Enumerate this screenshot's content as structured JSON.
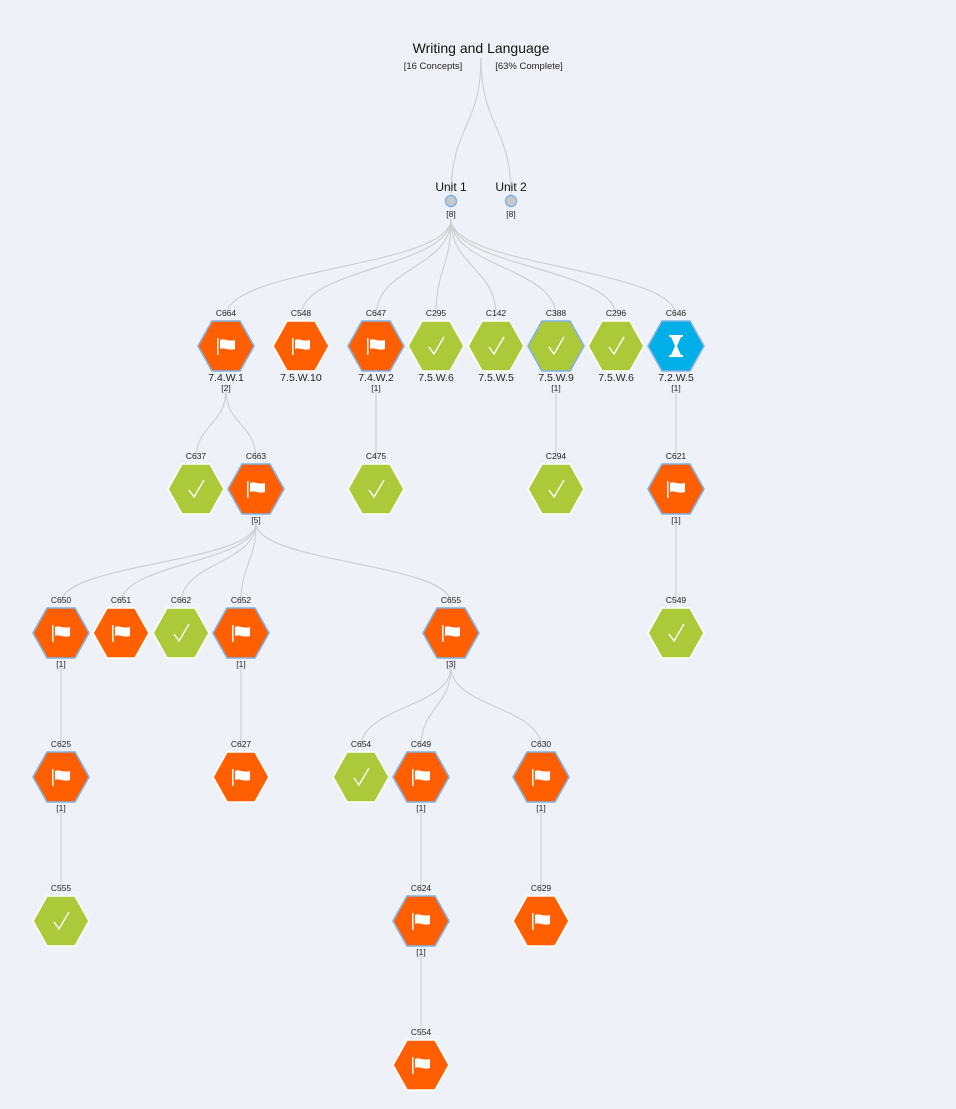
{
  "root": {
    "title": "Writing and Language",
    "concepts": "[16 Concepts]",
    "complete": "[63% Complete]"
  },
  "colors": {
    "flagged": "#ff5f00",
    "complete": "#acc93a",
    "in_progress": "#00aee8",
    "selected_border": "#7fb2e6",
    "edge": "#cfd0d3",
    "unit_fill": "#c9c9cb"
  },
  "units": [
    {
      "id": "u1",
      "label": "Unit 1",
      "count": "[8]"
    },
    {
      "id": "u2",
      "label": "Unit 2",
      "count": "[8]"
    }
  ],
  "nodes": [
    {
      "id": "C664",
      "parent": "u1",
      "status": "flagged",
      "icon": "flag-icon",
      "label": "7.4.W.1",
      "count": "[2]",
      "selected": true
    },
    {
      "id": "C548",
      "parent": "u1",
      "status": "flagged",
      "icon": "flag-icon",
      "label": "7.5.W.10",
      "count": "",
      "selected": false
    },
    {
      "id": "C647",
      "parent": "u1",
      "status": "flagged",
      "icon": "flag-icon",
      "label": "7.4.W.2",
      "count": "[1]",
      "selected": true
    },
    {
      "id": "C295",
      "parent": "u1",
      "status": "complete",
      "icon": "checkmark-icon",
      "label": "7.5.W.6",
      "count": "",
      "selected": false
    },
    {
      "id": "C142",
      "parent": "u1",
      "status": "complete",
      "icon": "checkmark-icon",
      "label": "7.5.W.5",
      "count": "",
      "selected": false
    },
    {
      "id": "C388",
      "parent": "u1",
      "status": "complete",
      "icon": "checkmark-icon",
      "label": "7.5.W.9",
      "count": "[1]",
      "selected": true
    },
    {
      "id": "C296",
      "parent": "u1",
      "status": "complete",
      "icon": "checkmark-icon",
      "label": "7.5.W.6",
      "count": "",
      "selected": false
    },
    {
      "id": "C646",
      "parent": "u1",
      "status": "in_progress",
      "icon": "hourglass-icon",
      "label": "7.2.W.5",
      "count": "[1]",
      "selected": true
    },
    {
      "id": "C637",
      "parent": "C664",
      "status": "complete",
      "icon": "checkmark-icon",
      "label": "",
      "count": "",
      "selected": false
    },
    {
      "id": "C663",
      "parent": "C664",
      "status": "flagged",
      "icon": "flag-icon",
      "label": "",
      "count": "[5]",
      "selected": true
    },
    {
      "id": "C475",
      "parent": "C647",
      "status": "complete",
      "icon": "checkmark-icon",
      "label": "",
      "count": "",
      "selected": false
    },
    {
      "id": "C294",
      "parent": "C388",
      "status": "complete",
      "icon": "checkmark-icon",
      "label": "",
      "count": "",
      "selected": false
    },
    {
      "id": "C621",
      "parent": "C646",
      "status": "flagged",
      "icon": "flag-icon",
      "label": "",
      "count": "[1]",
      "selected": true
    },
    {
      "id": "C650",
      "parent": "C663",
      "status": "flagged",
      "icon": "flag-icon",
      "label": "",
      "count": "[1]",
      "selected": true
    },
    {
      "id": "C651",
      "parent": "C663",
      "status": "flagged",
      "icon": "flag-icon",
      "label": "",
      "count": "",
      "selected": false
    },
    {
      "id": "C662",
      "parent": "C663",
      "status": "complete",
      "icon": "checkmark-icon",
      "label": "",
      "count": "",
      "selected": false
    },
    {
      "id": "C652",
      "parent": "C663",
      "status": "flagged",
      "icon": "flag-icon",
      "label": "",
      "count": "[1]",
      "selected": true
    },
    {
      "id": "C655",
      "parent": "C663",
      "status": "flagged",
      "icon": "flag-icon",
      "label": "",
      "count": "[3]",
      "selected": true
    },
    {
      "id": "C549",
      "parent": "C621",
      "status": "complete",
      "icon": "checkmark-icon",
      "label": "",
      "count": "",
      "selected": false
    },
    {
      "id": "C625",
      "parent": "C650",
      "status": "flagged",
      "icon": "flag-icon",
      "label": "",
      "count": "[1]",
      "selected": true
    },
    {
      "id": "C627",
      "parent": "C652",
      "status": "flagged",
      "icon": "flag-icon",
      "label": "",
      "count": "",
      "selected": false
    },
    {
      "id": "C654",
      "parent": "C655",
      "status": "complete",
      "icon": "checkmark-icon",
      "label": "",
      "count": "",
      "selected": false
    },
    {
      "id": "C649",
      "parent": "C655",
      "status": "flagged",
      "icon": "flag-icon",
      "label": "",
      "count": "[1]",
      "selected": true
    },
    {
      "id": "C630",
      "parent": "C655",
      "status": "flagged",
      "icon": "flag-icon",
      "label": "",
      "count": "[1]",
      "selected": true
    },
    {
      "id": "C555",
      "parent": "C625",
      "status": "complete",
      "icon": "checkmark-icon",
      "label": "",
      "count": "",
      "selected": false
    },
    {
      "id": "C624",
      "parent": "C649",
      "status": "flagged",
      "icon": "flag-icon",
      "label": "",
      "count": "[1]",
      "selected": true
    },
    {
      "id": "C629",
      "parent": "C630",
      "status": "flagged",
      "icon": "flag-icon",
      "label": "",
      "count": "",
      "selected": false
    },
    {
      "id": "C554",
      "parent": "C624",
      "status": "flagged",
      "icon": "flag-icon",
      "label": "",
      "count": "",
      "selected": false
    }
  ]
}
